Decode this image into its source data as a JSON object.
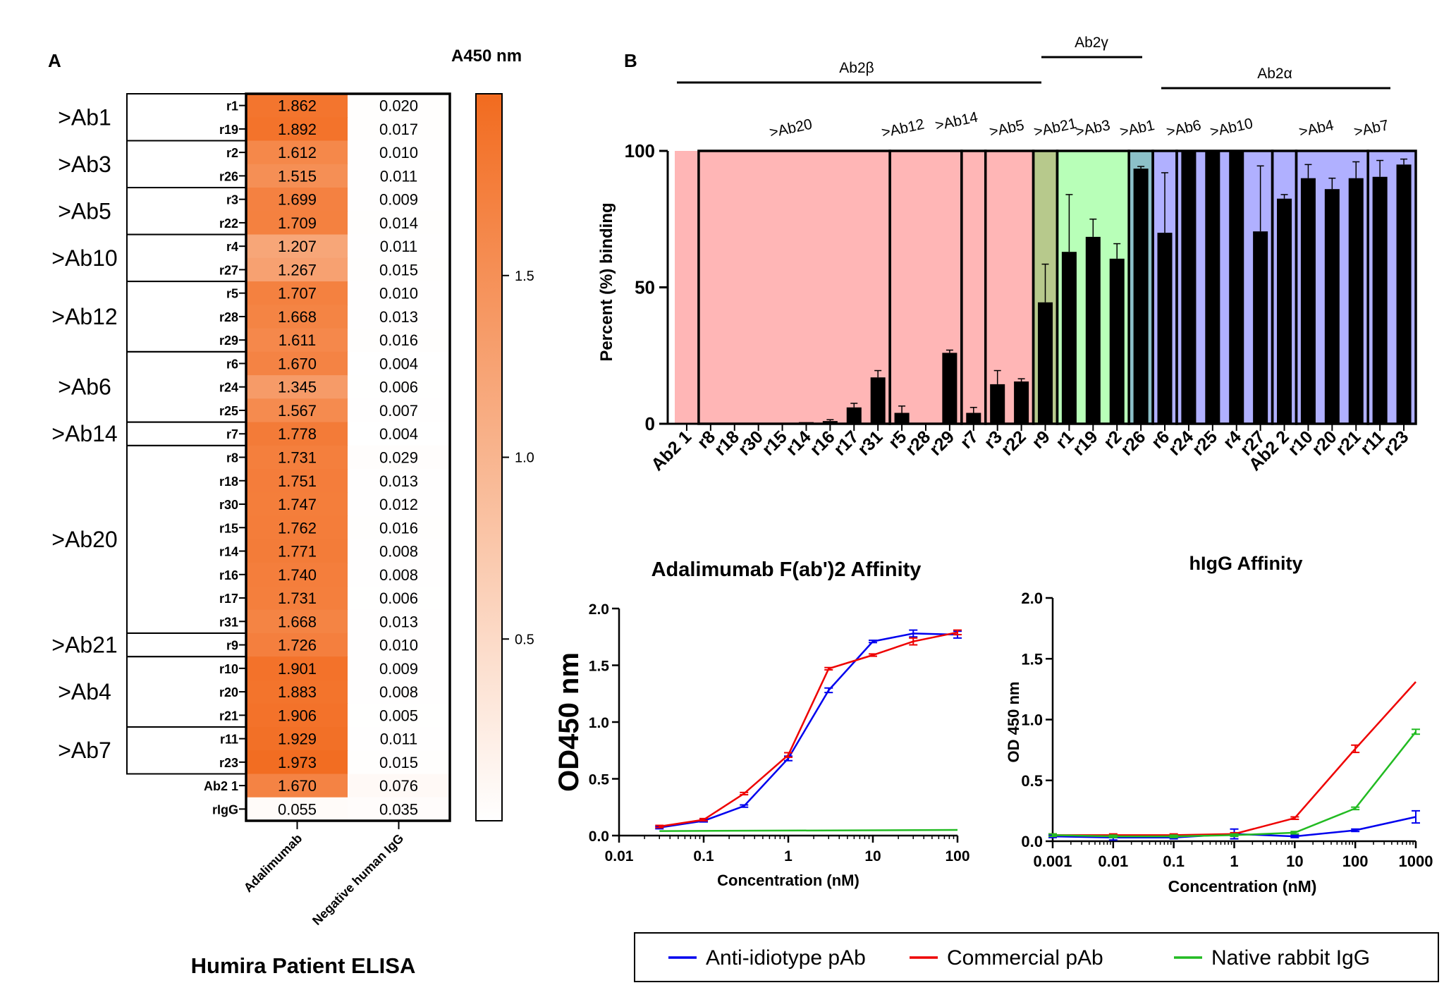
{
  "panel_a": {
    "letter": "A",
    "title": "Humira Patient ELISA",
    "colorbar_title": "A450 nm",
    "colorbar_ticks": [
      "1.5",
      "1.0",
      "0.5"
    ],
    "colors": {
      "max": "#f26b1f",
      "min": "#ffffff"
    },
    "chart_data": {
      "type": "heatmap",
      "title": "Humira Patient ELISA",
      "columns": [
        "Adalimumab",
        "Negative human IgG"
      ],
      "rows": [
        "r1",
        "r19",
        "r2",
        "r26",
        "r3",
        "r22",
        "r4",
        "r27",
        "r5",
        "r28",
        "r29",
        "r6",
        "r24",
        "r25",
        "r7",
        "r8",
        "r18",
        "r30",
        "r15",
        "r14",
        "r16",
        "r17",
        "r31",
        "r9",
        "r10",
        "r20",
        "r21",
        "r11",
        "r23",
        "Ab2 1",
        "rIgG"
      ],
      "values": [
        [
          "1.862",
          "0.020"
        ],
        [
          "1.892",
          "0.017"
        ],
        [
          "1.612",
          "0.010"
        ],
        [
          "1.515",
          "0.011"
        ],
        [
          "1.699",
          "0.009"
        ],
        [
          "1.709",
          "0.014"
        ],
        [
          "1.207",
          "0.011"
        ],
        [
          "1.267",
          "0.015"
        ],
        [
          "1.707",
          "0.010"
        ],
        [
          "1.668",
          "0.013"
        ],
        [
          "1.611",
          "0.016"
        ],
        [
          "1.670",
          "0.004"
        ],
        [
          "1.345",
          "0.006"
        ],
        [
          "1.567",
          "0.007"
        ],
        [
          "1.778",
          "0.004"
        ],
        [
          "1.731",
          "0.029"
        ],
        [
          "1.751",
          "0.013"
        ],
        [
          "1.747",
          "0.012"
        ],
        [
          "1.762",
          "0.016"
        ],
        [
          "1.771",
          "0.008"
        ],
        [
          "1.740",
          "0.008"
        ],
        [
          "1.731",
          "0.006"
        ],
        [
          "1.668",
          "0.013"
        ],
        [
          "1.726",
          "0.010"
        ],
        [
          "1.901",
          "0.009"
        ],
        [
          "1.883",
          "0.008"
        ],
        [
          "1.906",
          "0.005"
        ],
        [
          "1.929",
          "0.011"
        ],
        [
          "1.973",
          "0.015"
        ],
        [
          "1.670",
          "0.076"
        ],
        [
          "0.055",
          "0.035"
        ]
      ],
      "groups": [
        {
          "label": ">Ab1",
          "rows": [
            "r1",
            "r19"
          ]
        },
        {
          "label": ">Ab3",
          "rows": [
            "r2",
            "r26"
          ]
        },
        {
          "label": ">Ab5",
          "rows": [
            "r3",
            "r22"
          ]
        },
        {
          "label": ">Ab10",
          "rows": [
            "r4",
            "r27"
          ]
        },
        {
          "label": ">Ab12",
          "rows": [
            "r5",
            "r28",
            "r29"
          ]
        },
        {
          "label": ">Ab6",
          "rows": [
            "r6",
            "r24",
            "r25"
          ]
        },
        {
          "label": ">Ab14",
          "rows": [
            "r7"
          ]
        },
        {
          "label": ">Ab20",
          "rows": [
            "r8",
            "r18",
            "r30",
            "r15",
            "r14",
            "r16",
            "r17",
            "r31"
          ]
        },
        {
          "label": ">Ab21",
          "rows": [
            "r9"
          ]
        },
        {
          "label": ">Ab4",
          "rows": [
            "r10",
            "r20",
            "r21"
          ]
        },
        {
          "label": ">Ab7",
          "rows": [
            "r11",
            "r23"
          ]
        }
      ],
      "colorbar_range": [
        0,
        2.0
      ]
    }
  },
  "panel_b": {
    "letter": "B",
    "colors": {
      "beta": "#ffb6b6",
      "gamma_olive": "#b7c98c",
      "gamma_green": "#b8ffb8",
      "gamma_teal": "#8cc0c8",
      "alpha": "#b0b0ff",
      "bar": "#000000"
    },
    "chart_data": {
      "type": "bar",
      "ylabel": "Percent (%) binding",
      "ylim": [
        0,
        100
      ],
      "yticks": [
        "0",
        "50",
        "100"
      ],
      "categories": [
        "Ab2 1",
        "r8",
        "r18",
        "r30",
        "r15",
        "r14",
        "r16",
        "r17",
        "r31",
        "r5",
        "r28",
        "r29",
        "r7",
        "r3",
        "r22",
        "r9",
        "r1",
        "r19",
        "r2",
        "r26",
        "r6",
        "r24",
        "r25",
        "r4",
        "r27",
        "Ab2 2",
        "r10",
        "r20",
        "r21",
        "r11",
        "r23"
      ],
      "values": [
        0,
        0,
        0,
        0,
        0,
        0.6,
        1,
        6,
        17,
        4,
        0,
        26,
        4,
        14.5,
        15.5,
        44.5,
        63,
        68.5,
        60.5,
        93.5,
        70,
        100,
        100,
        100,
        70.5,
        82.5,
        90,
        86,
        90,
        90.5,
        95
      ],
      "errors": [
        0,
        0,
        0,
        0,
        0,
        0,
        0.5,
        1.5,
        2.5,
        2.5,
        0,
        1,
        2,
        5,
        1,
        14,
        21,
        6.5,
        5.5,
        0.8,
        22,
        0,
        0,
        0,
        24,
        1.5,
        5,
        4,
        6,
        6,
        2
      ],
      "top_groups": [
        {
          "label": "Ab2β",
          "from": "Ab2 1",
          "to": "r9"
        },
        {
          "label": "Ab2γ",
          "from": "r9",
          "to": "r26"
        },
        {
          "label": "Ab2α",
          "from": "r6",
          "to": "r23"
        }
      ],
      "subgroups": [
        ">Ab20",
        ">Ab12",
        ">Ab14",
        ">Ab5",
        ">Ab21",
        ">Ab3",
        ">Ab1",
        ">Ab6",
        ">Ab10",
        ">Ab4",
        ">Ab7"
      ]
    }
  },
  "panel_c": {
    "chart_data": {
      "type": "line",
      "title": "Adalimumab F(ab')2 Affinity",
      "xlabel": "Concentration (nM)",
      "ylabel": "OD450 nm",
      "xscale": "log",
      "xlim": [
        0.01,
        100
      ],
      "ylim": [
        0,
        2.0
      ],
      "xticks": [
        "0.01",
        "0.1",
        "1",
        "10",
        "100"
      ],
      "yticks": [
        "0.0",
        "0.5",
        "1.0",
        "1.5",
        "2.0"
      ],
      "series": [
        {
          "name": "Anti-idiotype pAb",
          "color": "#0000ee",
          "x": [
            0.03,
            0.1,
            0.3,
            1,
            3,
            10,
            30,
            100
          ],
          "y": [
            0.07,
            0.13,
            0.26,
            0.68,
            1.28,
            1.71,
            1.78,
            1.77
          ],
          "err": [
            0.01,
            0.01,
            0.01,
            0.02,
            0.02,
            0.01,
            0.03,
            0.03
          ]
        },
        {
          "name": "Commercial pAb",
          "color": "#ee0000",
          "x": [
            0.03,
            0.1,
            0.3,
            1,
            3,
            10,
            30,
            100
          ],
          "y": [
            0.08,
            0.14,
            0.37,
            0.71,
            1.47,
            1.59,
            1.71,
            1.79
          ],
          "err": [
            0.01,
            0.01,
            0.01,
            0.02,
            0.01,
            0.01,
            0.03,
            0.02
          ]
        },
        {
          "name": "Native rabbit IgG",
          "color": "#22bb22",
          "x": [
            0.03,
            100
          ],
          "y": [
            0.04,
            0.05
          ],
          "err": [
            0,
            0
          ]
        }
      ]
    }
  },
  "panel_d": {
    "chart_data": {
      "type": "line",
      "title": "hIgG Affinity",
      "xlabel": "Concentration (nM)",
      "ylabel": "OD 450 nm",
      "xscale": "log",
      "xlim": [
        0.001,
        1000
      ],
      "ylim": [
        0,
        2.0
      ],
      "xticks": [
        "0.001",
        "0.01",
        "0.1",
        "1",
        "10",
        "100",
        "1000"
      ],
      "yticks": [
        "0.0",
        "0.5",
        "1.0",
        "1.5",
        "2.0"
      ],
      "series": [
        {
          "name": "Anti-idiotype pAb",
          "color": "#0000ee",
          "x": [
            0.001,
            0.01,
            0.1,
            1,
            10,
            100,
            1000
          ],
          "y": [
            0.04,
            0.03,
            0.03,
            0.06,
            0.04,
            0.09,
            0.2
          ],
          "err": [
            0.01,
            0.02,
            0.01,
            0.04,
            0.01,
            0.01,
            0.05
          ]
        },
        {
          "name": "Commercial pAb",
          "color": "#ee0000",
          "x": [
            0.001,
            0.01,
            0.1,
            1,
            10,
            100,
            1000
          ],
          "y": [
            0.05,
            0.05,
            0.05,
            0.06,
            0.19,
            0.76,
            1.31
          ],
          "err": [
            0.01,
            0.01,
            0.01,
            0.01,
            0.01,
            0.03,
            0
          ]
        },
        {
          "name": "Native rabbit IgG",
          "color": "#22bb22",
          "x": [
            0.001,
            0.01,
            0.1,
            1,
            10,
            100,
            1000
          ],
          "y": [
            0.05,
            0.04,
            0.04,
            0.05,
            0.07,
            0.27,
            0.9
          ],
          "err": [
            0.01,
            0.01,
            0.01,
            0.01,
            0.01,
            0.01,
            0.02
          ]
        }
      ]
    }
  },
  "legend": {
    "items": [
      {
        "label": "Anti-idiotype pAb",
        "color": "#0000ee"
      },
      {
        "label": "Commercial pAb",
        "color": "#ee0000"
      },
      {
        "label": "Native rabbit IgG",
        "color": "#22bb22"
      }
    ]
  }
}
